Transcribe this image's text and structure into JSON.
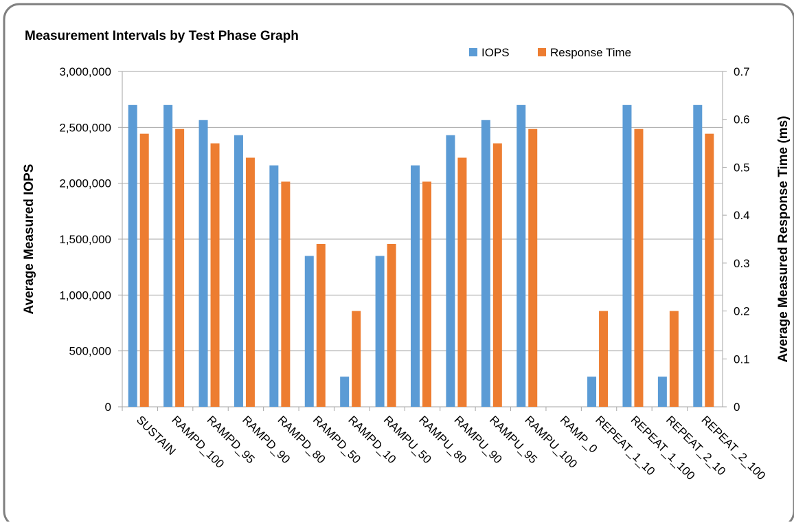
{
  "chart_data": {
    "type": "bar",
    "title": "Measurement Intervals by Test Phase Graph",
    "y_label": "Average Measured IOPS",
    "y2_label": "Average Measured Response Time (ms)",
    "categories": [
      "SUSTAIN",
      "RAMPD_100",
      "RAMPD_95",
      "RAMPD_90",
      "RAMPD_80",
      "RAMPD_50",
      "RAMPD_10",
      "RAMPU_50",
      "RAMPU_80",
      "RAMPU_90",
      "RAMPU_95",
      "RAMPU_100",
      "RAMP_0",
      "REPEAT_1_10",
      "REPEAT_1_100",
      "REPEAT_2_10",
      "REPEAT_2_100"
    ],
    "series": [
      {
        "name": "IOPS",
        "color": "#5b9bd5",
        "values": [
          2700000,
          2700000,
          2565000,
          2430000,
          2160000,
          1350000,
          270000,
          1350000,
          2160000,
          2430000,
          2565000,
          2700000,
          0,
          270000,
          2700000,
          270000,
          2700000
        ]
      },
      {
        "name": "Response Time",
        "color": "#ed7d31",
        "axis": "y2",
        "values": [
          0.57,
          0.58,
          0.55,
          0.52,
          0.47,
          0.34,
          0.2,
          0.34,
          0.47,
          0.52,
          0.55,
          0.58,
          0,
          0.2,
          0.58,
          0.2,
          0.57
        ]
      }
    ],
    "ylim": [
      0,
      3000000
    ],
    "yticks": [
      0,
      {
        "value": 500000,
        "label": "500,000"
      },
      {
        "value": 1000000,
        "label": "1,000,000"
      },
      {
        "value": 1500000,
        "label": "1,500,000"
      },
      {
        "value": 2000000,
        "label": "2,000,000"
      },
      {
        "value": 2500000,
        "label": "2,500,000"
      },
      {
        "value": 3000000,
        "label": "3,000,000"
      }
    ],
    "y2lim": [
      0,
      0.7
    ],
    "y2ticks": [
      0,
      0.1,
      0.2,
      0.3,
      0.4,
      0.5,
      0.6,
      0.7
    ],
    "grid": true,
    "legend": "top"
  }
}
